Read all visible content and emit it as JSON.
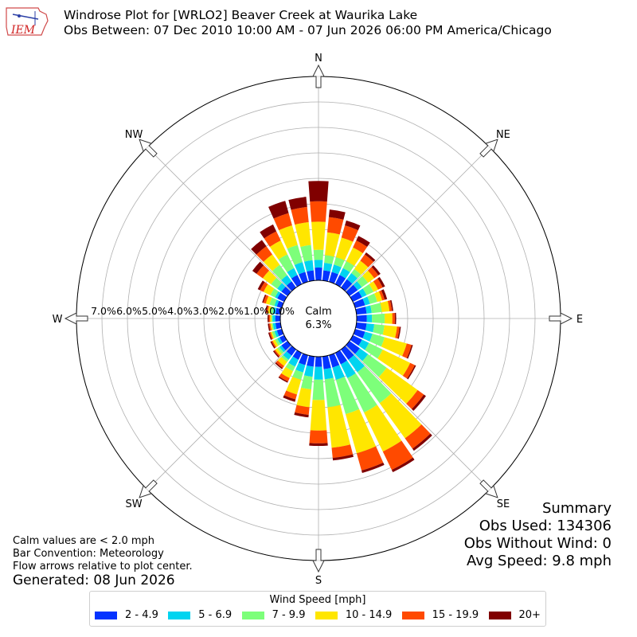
{
  "header": {
    "logo_text": "IEM",
    "title_line1": "Windrose Plot for [WRLO2] Beaver Creek at Waurika Lake",
    "title_line2": "Obs Between: 07 Dec 2010 10:00 AM - 07 Jun 2026 06:00 PM America/Chicago"
  },
  "chart_data": {
    "type": "windrose",
    "direction_labels": [
      "N",
      "NE",
      "E",
      "SE",
      "S",
      "SW",
      "W",
      "NW"
    ],
    "radial_ticks": [
      "0.0%",
      "1.0%",
      "2.0%",
      "3.0%",
      "4.0%",
      "5.0%",
      "6.0%",
      "7.0%"
    ],
    "radial_max": 8.0,
    "calm_label": "Calm",
    "calm_value": "6.3%",
    "speed_bins": [
      "2 - 4.9",
      "5 - 6.9",
      "7 - 9.9",
      "10 - 14.9",
      "15 - 19.9",
      "20+"
    ],
    "colors": [
      "#0433ff",
      "#00d4f0",
      "#7dff7a",
      "#ffe600",
      "#ff4a00",
      "#800000"
    ],
    "directions_deg": [
      0,
      10,
      20,
      30,
      40,
      50,
      60,
      70,
      80,
      90,
      100,
      110,
      120,
      130,
      140,
      150,
      160,
      170,
      180,
      190,
      200,
      210,
      220,
      230,
      240,
      250,
      260,
      270,
      280,
      290,
      300,
      310,
      320,
      330,
      340,
      350
    ],
    "cumulative_percent": [
      [
        0.5,
        0.8,
        1.2,
        2.3,
        3.1,
        3.9
      ],
      [
        0.4,
        0.7,
        1.0,
        1.9,
        2.5,
        2.8
      ],
      [
        0.4,
        0.7,
        1.0,
        1.8,
        2.3,
        2.5
      ],
      [
        0.4,
        0.7,
        1.0,
        1.6,
        1.9,
        2.1
      ],
      [
        0.4,
        0.7,
        0.9,
        1.3,
        1.6,
        1.7
      ],
      [
        0.4,
        0.6,
        0.9,
        1.2,
        1.4,
        1.5
      ],
      [
        0.4,
        0.6,
        0.9,
        1.1,
        1.3,
        1.4
      ],
      [
        0.4,
        0.6,
        0.9,
        1.1,
        1.2,
        1.3
      ],
      [
        0.4,
        0.6,
        1.0,
        1.3,
        1.4,
        1.45
      ],
      [
        0.4,
        0.6,
        1.1,
        1.4,
        1.5,
        1.55
      ],
      [
        0.4,
        0.7,
        1.1,
        1.6,
        1.7,
        1.75
      ],
      [
        0.4,
        0.7,
        1.2,
        2.1,
        2.3,
        2.35
      ],
      [
        0.4,
        0.7,
        1.3,
        2.5,
        2.7,
        2.75
      ],
      [
        0.5,
        0.9,
        1.8,
        3.3,
        3.6,
        3.7
      ],
      [
        0.5,
        1.1,
        2.6,
        4.3,
        4.8,
        4.9
      ],
      [
        0.5,
        1.1,
        2.6,
        4.3,
        5.1,
        5.2
      ],
      [
        0.5,
        1.0,
        2.4,
        4.0,
        4.7,
        4.8
      ],
      [
        0.5,
        0.9,
        2.0,
        3.6,
        4.0,
        4.1
      ],
      [
        0.4,
        0.9,
        1.7,
        2.9,
        3.4,
        3.5
      ],
      [
        0.4,
        0.8,
        1.3,
        2.0,
        2.3,
        2.4
      ],
      [
        0.4,
        0.7,
        1.0,
        1.6,
        1.8,
        1.9
      ],
      [
        0.3,
        0.6,
        0.8,
        1.1,
        1.25,
        1.3
      ],
      [
        0.3,
        0.5,
        0.6,
        0.8,
        0.9,
        0.95
      ],
      [
        0.3,
        0.4,
        0.5,
        0.6,
        0.65,
        0.7
      ],
      [
        0.2,
        0.3,
        0.4,
        0.5,
        0.55,
        0.6
      ],
      [
        0.2,
        0.3,
        0.4,
        0.45,
        0.5,
        0.55
      ],
      [
        0.2,
        0.3,
        0.35,
        0.4,
        0.45,
        0.5
      ],
      [
        0.2,
        0.3,
        0.35,
        0.4,
        0.45,
        0.5
      ],
      [
        0.2,
        0.3,
        0.4,
        0.5,
        0.55,
        0.6
      ],
      [
        0.2,
        0.3,
        0.5,
        0.65,
        0.75,
        0.8
      ],
      [
        0.3,
        0.4,
        0.6,
        0.9,
        1.05,
        1.15
      ],
      [
        0.3,
        0.5,
        0.8,
        1.2,
        1.5,
        1.7
      ],
      [
        0.3,
        0.6,
        1.1,
        1.6,
        2.0,
        2.3
      ],
      [
        0.4,
        0.7,
        1.3,
        1.9,
        2.3,
        2.6
      ],
      [
        0.4,
        0.8,
        1.5,
        2.3,
        2.8,
        3.3
      ],
      [
        0.4,
        0.8,
        1.4,
        2.3,
        2.9,
        3.3
      ]
    ]
  },
  "summary": {
    "heading": "Summary",
    "obs_used": "Obs Used: 134306",
    "obs_without_wind": "Obs Without Wind: 0",
    "avg_speed": "Avg Speed: 9.8 mph"
  },
  "notes": {
    "calm": "Calm values are < 2.0 mph",
    "convention": "Bar Convention: Meteorology",
    "arrows": "Flow arrows relative to plot center.",
    "generated": "Generated: 08 Jun 2026"
  },
  "legend": {
    "title": "Wind Speed [mph]",
    "items": [
      "2 - 4.9",
      "5 - 6.9",
      "7 - 9.9",
      "10 - 14.9",
      "15 - 19.9",
      "20+"
    ]
  }
}
